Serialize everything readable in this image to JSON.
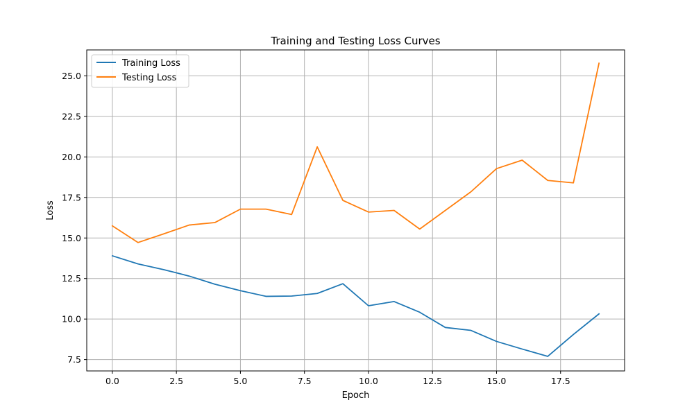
{
  "chart_data": {
    "type": "line",
    "title": "Training and Testing Loss Curves",
    "xlabel": "Epoch",
    "ylabel": "Loss",
    "xlim": [
      -1.0,
      20.0
    ],
    "ylim": [
      6.8,
      26.6
    ],
    "x_ticks": [
      "0.0",
      "2.5",
      "5.0",
      "7.5",
      "10.0",
      "12.5",
      "15.0",
      "17.5"
    ],
    "y_ticks": [
      "7.5",
      "10.0",
      "12.5",
      "15.0",
      "17.5",
      "20.0",
      "22.5",
      "25.0"
    ],
    "grid": true,
    "legend_position": "top-left",
    "x": [
      0,
      1,
      2,
      3,
      4,
      5,
      6,
      7,
      8,
      9,
      10,
      11,
      12,
      13,
      14,
      15,
      16,
      17,
      18,
      19
    ],
    "series": [
      {
        "name": "Training Loss",
        "color": "#1f77b4",
        "values": [
          13.9,
          13.4,
          13.05,
          12.65,
          12.15,
          11.75,
          11.4,
          11.42,
          11.58,
          12.18,
          10.82,
          11.08,
          10.42,
          9.48,
          9.3,
          8.62,
          8.15,
          7.7,
          9.05,
          10.32
        ]
      },
      {
        "name": "Testing Loss",
        "color": "#ff7f0e",
        "values": [
          15.75,
          14.72,
          15.25,
          15.8,
          15.95,
          16.78,
          16.78,
          16.45,
          20.62,
          17.32,
          16.6,
          16.7,
          15.55,
          16.7,
          17.85,
          19.28,
          19.8,
          18.55,
          18.4,
          25.78
        ]
      }
    ]
  }
}
